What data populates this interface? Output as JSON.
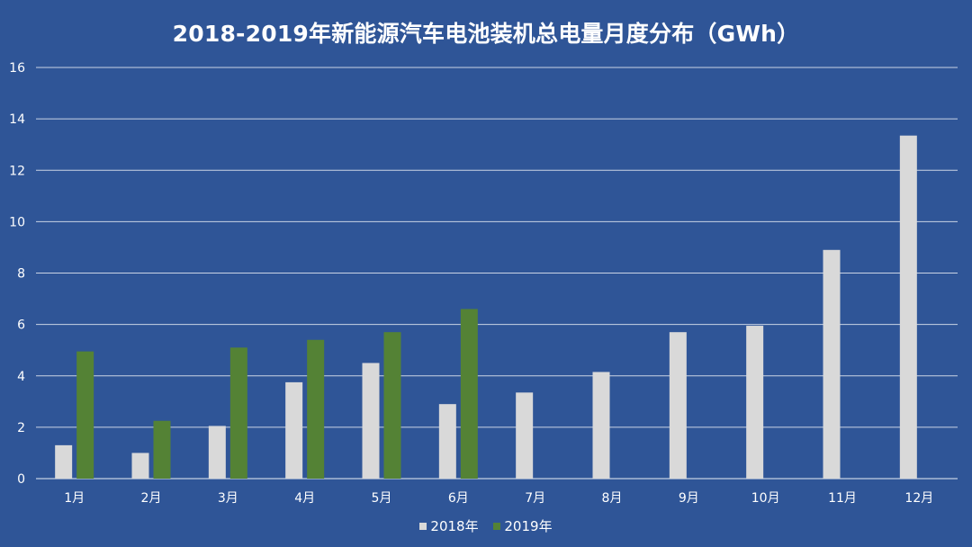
{
  "chart_data": {
    "type": "bar",
    "title": "2018-2019年新能源汽车电池装机总电量月度分布（GWh）",
    "categories": [
      "1月",
      "2月",
      "3月",
      "4月",
      "5月",
      "6月",
      "7月",
      "8月",
      "9月",
      "10月",
      "11月",
      "12月"
    ],
    "series": [
      {
        "name": "2018年",
        "color": "#d9d9d9",
        "values": [
          1.3,
          1.0,
          2.05,
          3.75,
          4.5,
          2.9,
          3.35,
          4.15,
          5.7,
          5.95,
          8.9,
          13.35
        ]
      },
      {
        "name": "2019年",
        "color": "#548235",
        "values": [
          4.95,
          2.25,
          5.1,
          5.4,
          5.7,
          6.6,
          null,
          null,
          null,
          null,
          null,
          null
        ]
      }
    ],
    "ylim": [
      0,
      16
    ],
    "yticks": [
      0,
      2,
      4,
      6,
      8,
      10,
      12,
      14,
      16
    ],
    "grid": true,
    "legend_position": "bottom",
    "background_color": "#2f5597",
    "gridline_color": "#ffffff"
  }
}
